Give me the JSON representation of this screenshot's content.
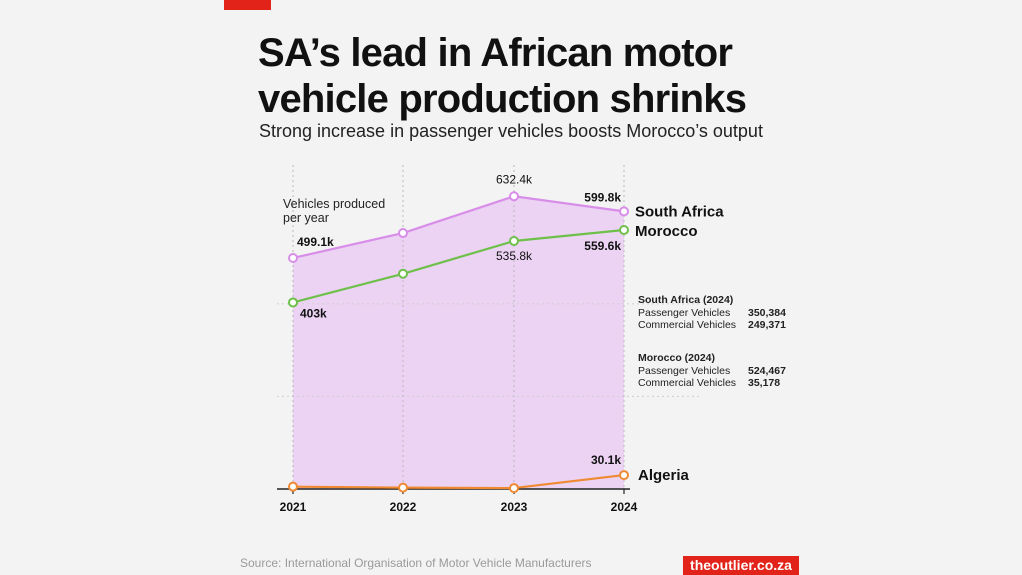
{
  "header": {
    "title": "SA’s lead in African motor vehicle production shrinks",
    "subtitle": "Strong increase in passenger vehicles boosts Morocco’s output"
  },
  "chart_data": {
    "type": "line",
    "title": "SA’s lead in African motor vehicle production shrinks",
    "ylabel": "Vehicles produced per year",
    "xlabel": "",
    "categories": [
      "2021",
      "2022",
      "2023",
      "2024"
    ],
    "ylim": [
      0,
      700
    ],
    "series": [
      {
        "name": "South Africa",
        "color": "#d88ee8",
        "values": [
          499.1,
          553,
          632.4,
          599.8
        ],
        "labels": [
          "499.1k",
          "",
          "632.4k",
          "599.8k"
        ]
      },
      {
        "name": "Morocco",
        "color": "#6ec04a",
        "values": [
          403,
          465,
          535.8,
          559.6
        ],
        "labels": [
          "403k",
          "",
          "535.8k",
          "559.6k"
        ]
      },
      {
        "name": "Algeria",
        "color": "#ef8a33",
        "values": [
          5,
          3,
          2,
          30.1
        ],
        "labels": [
          "",
          "",
          "",
          "30.1k"
        ]
      }
    ],
    "area_fill_color": "#ecd3f4"
  },
  "info_panel": {
    "south_africa": {
      "heading": "South Africa (2024)",
      "rows": [
        {
          "label": "Passenger Vehicles",
          "value": "350,384"
        },
        {
          "label": "Commercial Vehicles",
          "value": "249,371"
        }
      ]
    },
    "morocco": {
      "heading": "Morocco (2024)",
      "rows": [
        {
          "label": "Passenger Vehicles",
          "value": "524,467"
        },
        {
          "label": "Commercial Vehicles",
          "value": "35,178"
        }
      ]
    }
  },
  "footer": {
    "source": "Source: International Organisation of Motor Vehicle Manufacturers",
    "brand": "theoutlier.co.za"
  }
}
